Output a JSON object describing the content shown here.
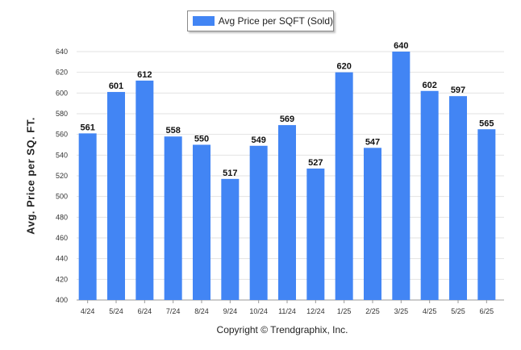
{
  "chart_data": {
    "type": "bar",
    "legend": [
      "Avg Price per SQFT (Sold)"
    ],
    "legend_position": "top-center",
    "ylabel": "Avg. Price per SQ. FT.",
    "xlabel": "",
    "ylim": [
      400,
      640
    ],
    "ytick_step": 20,
    "grid": true,
    "categories": [
      "4/24",
      "5/24",
      "6/24",
      "7/24",
      "8/24",
      "9/24",
      "10/24",
      "11/24",
      "12/24",
      "1/25",
      "2/25",
      "3/25",
      "4/25",
      "5/25",
      "6/25"
    ],
    "series": [
      {
        "name": "Avg Price per SQFT (Sold)",
        "values": [
          561,
          601,
          612,
          558,
          550,
          517,
          549,
          569,
          527,
          620,
          547,
          640,
          602,
          597,
          565
        ]
      }
    ],
    "bar_color": "#4285f4",
    "annotation": "Copyright © Trendgraphix, Inc."
  }
}
